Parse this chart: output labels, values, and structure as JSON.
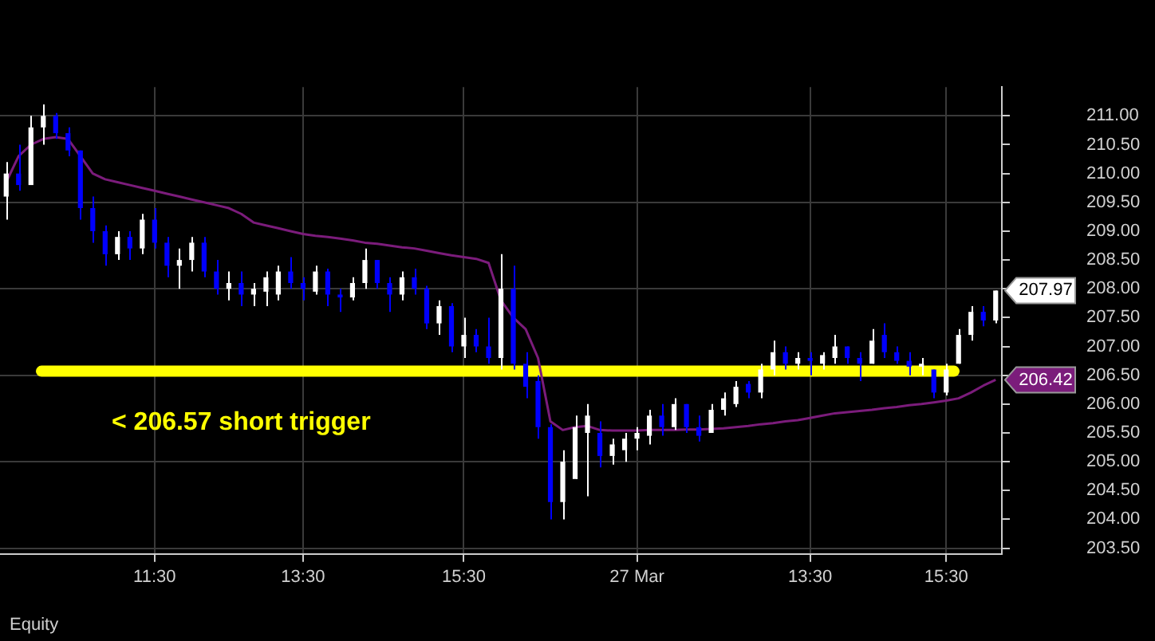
{
  "chart_data": {
    "type": "candlestick",
    "categories": [
      null,
      null,
      null,
      null,
      null,
      null,
      null,
      null,
      null,
      null,
      null,
      null,
      "11:30",
      null,
      null,
      null,
      null,
      null,
      null,
      null,
      null,
      null,
      null,
      null,
      "13:30",
      null,
      null,
      null,
      null,
      null,
      null,
      null,
      null,
      null,
      null,
      null,
      null,
      "15:30",
      null,
      null,
      null,
      null,
      null,
      null,
      null,
      null,
      null,
      null,
      null,
      null,
      null,
      "27 Mar",
      null,
      null,
      null,
      null,
      null,
      null,
      null,
      null,
      null,
      null,
      null,
      null,
      null,
      "13:30",
      null,
      null,
      null,
      null,
      null,
      null,
      null,
      null,
      null,
      null,
      "15:30",
      null,
      null,
      null,
      null
    ],
    "ohlc": [
      [
        209.6,
        210.2,
        209.2,
        210.0
      ],
      [
        210.0,
        210.5,
        209.7,
        209.8
      ],
      [
        209.8,
        211.0,
        209.8,
        210.8
      ],
      [
        210.8,
        211.2,
        210.5,
        211.0
      ],
      [
        211.0,
        211.05,
        210.6,
        210.7
      ],
      [
        210.7,
        210.8,
        210.3,
        210.4
      ],
      [
        210.4,
        210.4,
        209.2,
        209.4
      ],
      [
        209.4,
        209.6,
        208.8,
        209.0
      ],
      [
        209.0,
        209.1,
        208.4,
        208.6
      ],
      [
        208.6,
        209.0,
        208.5,
        208.9
      ],
      [
        208.9,
        209.0,
        208.5,
        208.7
      ],
      [
        208.7,
        209.3,
        208.6,
        209.2
      ],
      [
        209.2,
        209.4,
        208.7,
        208.8
      ],
      [
        208.8,
        208.9,
        208.2,
        208.4
      ],
      [
        208.4,
        208.7,
        208.0,
        208.5
      ],
      [
        208.5,
        208.9,
        208.3,
        208.8
      ],
      [
        208.8,
        208.9,
        208.2,
        208.3
      ],
      [
        208.3,
        208.5,
        207.9,
        208.0
      ],
      [
        208.0,
        208.3,
        207.8,
        208.1
      ],
      [
        208.1,
        208.3,
        207.7,
        207.9
      ],
      [
        207.9,
        208.1,
        207.7,
        208.0
      ],
      [
        207.95,
        208.3,
        207.7,
        208.2
      ],
      [
        207.9,
        208.4,
        207.8,
        208.3
      ],
      [
        208.3,
        208.55,
        208.0,
        208.1
      ],
      [
        208.1,
        208.2,
        207.8,
        208.0
      ],
      [
        207.95,
        208.4,
        207.9,
        208.3
      ],
      [
        208.3,
        208.35,
        207.7,
        207.9
      ],
      [
        207.9,
        208.0,
        207.6,
        207.85
      ],
      [
        207.85,
        208.2,
        207.8,
        208.1
      ],
      [
        208.1,
        208.7,
        208.0,
        208.5
      ],
      [
        208.5,
        208.5,
        208.0,
        208.1
      ],
      [
        208.1,
        208.2,
        207.6,
        207.9
      ],
      [
        207.9,
        208.3,
        207.8,
        208.2
      ],
      [
        208.2,
        208.35,
        207.9,
        208.0
      ],
      [
        208.0,
        208.05,
        207.3,
        207.4
      ],
      [
        207.4,
        207.8,
        207.2,
        207.7
      ],
      [
        207.7,
        207.75,
        206.9,
        207.0
      ],
      [
        207.0,
        207.5,
        206.8,
        207.2
      ],
      [
        207.2,
        207.3,
        206.9,
        207.0
      ],
      [
        207.0,
        207.5,
        206.7,
        206.8
      ],
      [
        206.8,
        208.6,
        206.6,
        208.0
      ],
      [
        208.0,
        208.4,
        206.6,
        206.7
      ],
      [
        206.7,
        206.9,
        206.1,
        206.3
      ],
      [
        206.4,
        206.5,
        205.4,
        205.6
      ],
      [
        205.6,
        205.65,
        204.0,
        204.3
      ],
      [
        204.3,
        205.2,
        204.0,
        205.0
      ],
      [
        204.7,
        205.8,
        204.7,
        205.6
      ],
      [
        205.5,
        206.0,
        204.4,
        205.8
      ],
      [
        205.5,
        205.7,
        204.9,
        205.1
      ],
      [
        205.1,
        205.4,
        204.95,
        205.3
      ],
      [
        205.2,
        205.5,
        205.0,
        205.4
      ],
      [
        205.4,
        205.6,
        205.2,
        205.5
      ],
      [
        205.45,
        205.9,
        205.3,
        205.8
      ],
      [
        205.8,
        206.0,
        205.45,
        205.6
      ],
      [
        205.6,
        206.1,
        205.55,
        206.0
      ],
      [
        206.0,
        206.0,
        205.5,
        205.6
      ],
      [
        205.6,
        205.8,
        205.35,
        205.45
      ],
      [
        205.5,
        206.0,
        205.5,
        205.9
      ],
      [
        205.9,
        206.2,
        205.8,
        206.1
      ],
      [
        206.0,
        206.4,
        205.95,
        206.3
      ],
      [
        206.35,
        206.4,
        206.1,
        206.2
      ],
      [
        206.2,
        206.7,
        206.1,
        206.6
      ],
      [
        206.6,
        207.1,
        206.5,
        206.9
      ],
      [
        206.9,
        207.0,
        206.6,
        206.7
      ],
      [
        206.7,
        206.9,
        206.6,
        206.8
      ],
      [
        206.8,
        206.9,
        206.5,
        206.75
      ],
      [
        206.7,
        206.9,
        206.6,
        206.85
      ],
      [
        206.8,
        207.2,
        206.7,
        207.0
      ],
      [
        207.0,
        207.0,
        206.7,
        206.8
      ],
      [
        206.8,
        206.9,
        206.4,
        206.7
      ],
      [
        206.7,
        207.3,
        206.7,
        207.1
      ],
      [
        207.2,
        207.4,
        206.8,
        206.9
      ],
      [
        206.9,
        207.0,
        206.7,
        206.75
      ],
      [
        206.75,
        206.9,
        206.5,
        206.65
      ],
      [
        206.65,
        206.8,
        206.5,
        206.7
      ],
      [
        206.6,
        206.6,
        206.1,
        206.2
      ],
      [
        206.2,
        206.7,
        206.15,
        206.6
      ],
      [
        206.7,
        207.3,
        206.7,
        207.2
      ],
      [
        207.2,
        207.7,
        207.1,
        207.6
      ],
      [
        207.6,
        207.7,
        207.35,
        207.45
      ],
      [
        207.45,
        207.97,
        207.4,
        207.97
      ]
    ],
    "colors": [
      "#ffffff",
      "#0000ff",
      "#ffffff",
      "#ffffff",
      "#0000ff",
      "#0000ff",
      "#0000ff",
      "#0000ff",
      "#0000ff",
      "#ffffff",
      "#0000ff",
      "#ffffff",
      "#0000ff",
      "#0000ff",
      "#ffffff",
      "#ffffff",
      "#0000ff",
      "#0000ff",
      "#ffffff",
      "#0000ff",
      "#ffffff",
      "#ffffff",
      "#ffffff",
      "#0000ff",
      "#0000ff",
      "#ffffff",
      "#0000ff",
      "#0000ff",
      "#ffffff",
      "#ffffff",
      "#0000ff",
      "#0000ff",
      "#ffffff",
      "#0000ff",
      "#0000ff",
      "#ffffff",
      "#0000ff",
      "#ffffff",
      "#0000ff",
      "#0000ff",
      "#ffffff",
      "#0000ff",
      "#0000ff",
      "#0000ff",
      "#0000ff",
      "#ffffff",
      "#ffffff",
      "#ffffff",
      "#0000ff",
      "#ffffff",
      "#ffffff",
      "#ffffff",
      "#ffffff",
      "#0000ff",
      "#ffffff",
      "#0000ff",
      "#0000ff",
      "#ffffff",
      "#ffffff",
      "#ffffff",
      "#0000ff",
      "#ffffff",
      "#ffffff",
      "#0000ff",
      "#ffffff",
      "#0000ff",
      "#ffffff",
      "#ffffff",
      "#0000ff",
      "#0000ff",
      "#ffffff",
      "#0000ff",
      "#0000ff",
      "#0000ff",
      "#ffffff",
      "#0000ff",
      "#ffffff",
      "#ffffff",
      "#ffffff",
      "#0000ff",
      "#ffffff"
    ],
    "series": [
      {
        "type": "line",
        "color": "#7b1c7b",
        "values": [
          209.85,
          210.3,
          210.5,
          210.6,
          210.63,
          210.6,
          210.3,
          210.0,
          209.9,
          209.85,
          209.8,
          209.75,
          209.7,
          209.65,
          209.6,
          209.55,
          209.5,
          209.45,
          209.4,
          209.3,
          209.15,
          209.1,
          209.05,
          209.0,
          208.95,
          208.92,
          208.9,
          208.87,
          208.84,
          208.8,
          208.78,
          208.75,
          208.72,
          208.7,
          208.66,
          208.62,
          208.58,
          208.55,
          208.52,
          208.45,
          207.8,
          207.5,
          207.3,
          206.8,
          205.7,
          205.55,
          205.6,
          205.62,
          205.55,
          205.54,
          205.54,
          205.54,
          205.55,
          205.55,
          205.55,
          205.56,
          205.56,
          205.57,
          205.58,
          205.6,
          205.62,
          205.65,
          205.67,
          205.7,
          205.72,
          205.76,
          205.8,
          205.84,
          205.86,
          205.88,
          205.9,
          205.93,
          205.95,
          205.98,
          206.0,
          206.03,
          206.06,
          206.1,
          206.2,
          206.32,
          206.42
        ]
      }
    ],
    "ylim": [
      203.4,
      211.5
    ],
    "yticks": [
      {
        "value": 203.5,
        "label": "203.50"
      },
      {
        "value": 204,
        "label": "204.00"
      },
      {
        "value": 204.5,
        "label": "204.50"
      },
      {
        "value": 205,
        "label": "205.00"
      },
      {
        "value": 205.5,
        "label": "205.50"
      },
      {
        "value": 206,
        "label": "206.00"
      },
      {
        "value": 206.5,
        "label": "206.50"
      },
      {
        "value": 207,
        "label": "207.00"
      },
      {
        "value": 207.5,
        "label": "207.50"
      },
      {
        "value": 208,
        "label": "208.00"
      },
      {
        "value": 208.5,
        "label": "208.50"
      },
      {
        "value": 209,
        "label": "209.00"
      },
      {
        "value": 209.5,
        "label": "209.50"
      },
      {
        "value": 210,
        "label": "210.00"
      },
      {
        "value": 210.5,
        "label": "210.50"
      },
      {
        "value": 211,
        "label": "211.00"
      }
    ],
    "grid": true,
    "ref_lines": [
      {
        "axis": "y",
        "value": 206.57,
        "color": "#ffff00"
      }
    ],
    "annotations": [
      "< 206.57 short trigger",
      "Equity",
      "207.97",
      "206.42"
    ]
  }
}
